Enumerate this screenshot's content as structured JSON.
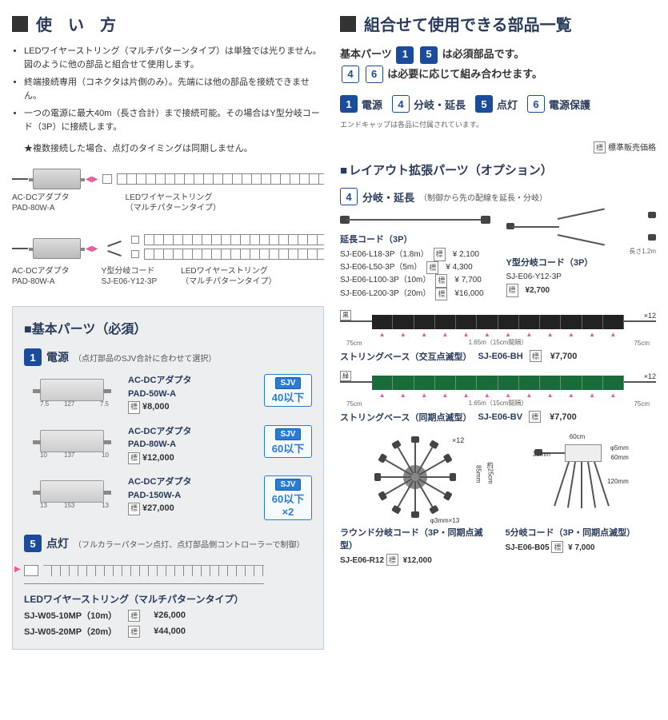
{
  "left": {
    "usage_title": "使　い　方",
    "bullets": [
      "LEDワイヤーストリング（マルチパターンタイプ）は単独では光りません。図のように他の部品と組合せて使用します。",
      "終端接続専用（コネクタは片側のみ）。先端には他の部品を接続できません。",
      "一つの電源に最大40m（長さ合計）まで接続可能。その場合はY型分岐コード（3P）に接続します。"
    ],
    "star_note": "★複数接続した場合、点灯のタイミングは同期しません。",
    "dia1": {
      "adapter": "AC-DCアダプタ",
      "adapter_code": "PAD-80W-A",
      "string": "LEDワイヤーストリング",
      "string_sub": "（マルチパターンタイプ）"
    },
    "dia2": {
      "adapter": "AC-DCアダプタ",
      "adapter_code": "PAD-80W-A",
      "y": "Y型分岐コード",
      "y_code": "SJ-E06-Y12-3P",
      "string": "LEDワイヤーストリング",
      "string_sub": "（マルチパターンタイプ）"
    },
    "panel_title": "■基本パーツ（必須）",
    "cat1": {
      "num": "1",
      "label": "電源",
      "sub": "（点灯部品のSJV合計に合わせて選択）"
    },
    "adapters": [
      {
        "name": "AC-DCアダプタ",
        "code": "PAD-50W-A",
        "price": "¥8,000",
        "sjv": "40以下",
        "w": "127",
        "h1": "7.5",
        "h2": "7.5"
      },
      {
        "name": "AC-DCアダプタ",
        "code": "PAD-80W-A",
        "price": "¥12,000",
        "sjv": "60以下",
        "w": "137",
        "h1": "10",
        "h2": "10"
      },
      {
        "name": "AC-DCアダプタ",
        "code": "PAD-150W-A",
        "price": "¥27,000",
        "sjv": "60以下×2",
        "w": "153",
        "h1": "13",
        "h2": "13"
      }
    ],
    "cat5": {
      "num": "5",
      "label": "点灯",
      "sub": "（フルカラーパターン点灯、点灯部品側コントローラーで制御）"
    },
    "string_products": {
      "title": "LEDワイヤーストリング（マルチパターンタイプ）",
      "items": [
        {
          "code": "SJ-W05-10MP（10m）",
          "price": "¥26,000"
        },
        {
          "code": "SJ-W05-20MP（20m）",
          "price": "¥44,000"
        }
      ]
    }
  },
  "right": {
    "combo_title": "組合せて使用できる部品一覧",
    "req_line1_a": "基本パーツ",
    "req_line1_b": "は必須部品です。",
    "req_line2_a": "は必要に応じて組み合わせます。",
    "badges": [
      {
        "n": "1",
        "t": "電源",
        "solid": true
      },
      {
        "n": "4",
        "t": "分岐・延長",
        "solid": false
      },
      {
        "n": "5",
        "t": "点灯",
        "solid": true
      },
      {
        "n": "6",
        "t": "電源保護",
        "solid": false
      }
    ],
    "endcap_note": "エンドキャップは各品に付属されています。",
    "std_price": "標準販売価格",
    "layout_title": "レイアウト拡張パーツ（オプション）",
    "opt4": {
      "n": "4",
      "t": "分岐・延長",
      "s": "（制御から先の配線を延長・分岐）"
    },
    "ext_cord": {
      "title": "延長コード（3P）",
      "items": [
        {
          "code": "SJ-E06-L18-3P（1.8m）",
          "price": "¥ 2,100"
        },
        {
          "code": "SJ-E06-L50-3P（5m）",
          "price": "¥ 4,300"
        },
        {
          "code": "SJ-E06-L100-3P（10m）",
          "price": "¥ 7,700"
        },
        {
          "code": "SJ-E06-L200-3P（20m）",
          "price": "¥16,000"
        }
      ]
    },
    "y_cord": {
      "title": "Y型分岐コード（3P）",
      "code": "SJ-E06-Y12-3P",
      "price": "¥2,700",
      "len": "長さ1.2m"
    },
    "base_black": {
      "label": "ストリングベース（交互点滅型）",
      "code": "SJ-E06-BH",
      "price": "¥7,700",
      "count": "×12",
      "d1": "75cm",
      "d2": "1.65m（15cm間隔）",
      "d3": "75cm",
      "color": "黒"
    },
    "base_green": {
      "label": "ストリングベース（同期点滅型）",
      "code": "SJ-E06-BV",
      "price": "¥7,700",
      "count": "×12",
      "d1": "75cm",
      "d2": "1.65m（15cm間隔）",
      "d3": "75cm",
      "color": "緑"
    },
    "round": {
      "label": "ラウンド分岐コード（3P・同期点滅型）",
      "code": "SJ-E06-R12",
      "price": "¥12,000",
      "x12": "×12",
      "d1": "85mm",
      "d2": "約25cm",
      "d3": "φ3mm×13"
    },
    "fan": {
      "label": "5分岐コード（3P・同期点滅型）",
      "code": "SJ-E06-B05",
      "price": "¥ 7,000",
      "d1": "60cm",
      "d2": "φ5mm",
      "d3": "60mm",
      "d4": "33mm",
      "d5": "120mm"
    },
    "sjv_label": "SJV",
    "price_tag": "標"
  }
}
